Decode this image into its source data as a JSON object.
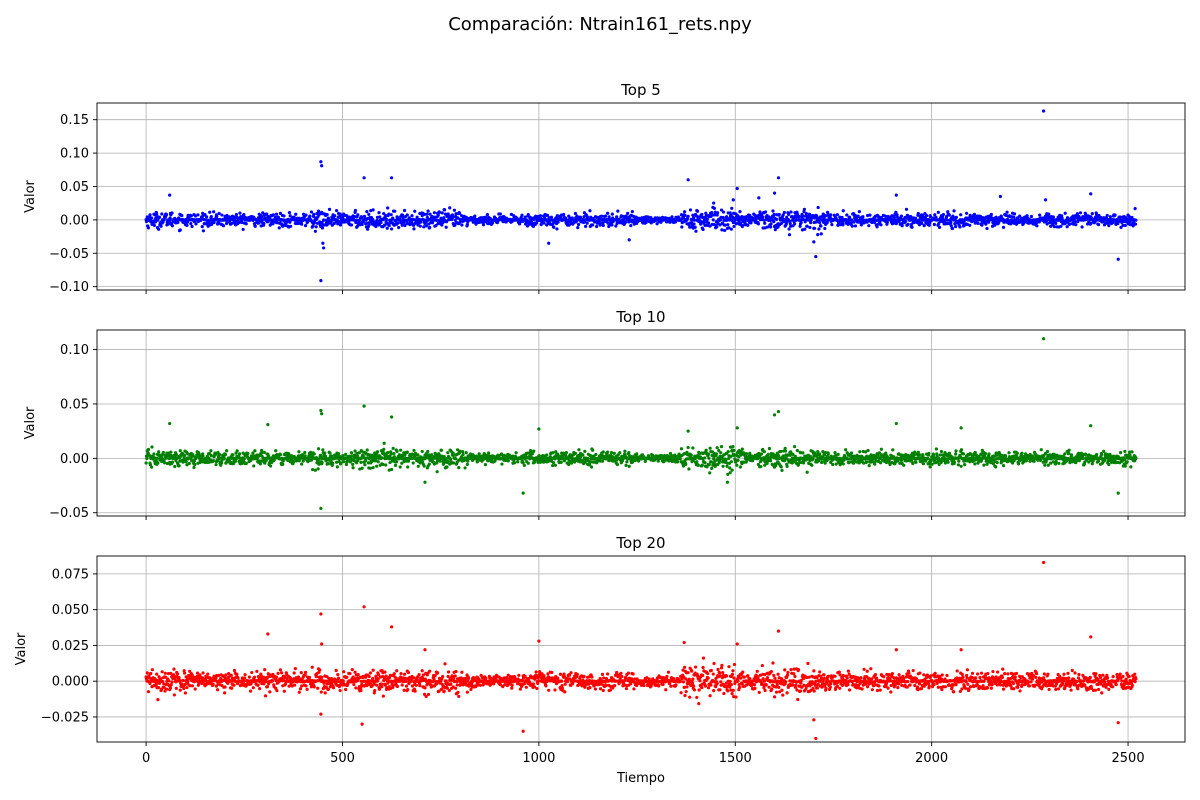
{
  "title": "Comparación: Ntrain161_rets.npy",
  "chart_data": [
    {
      "type": "scatter",
      "title": "Top 5",
      "xlabel": "",
      "ylabel": "Valor",
      "color": "#0000ff",
      "xlim": [
        -125,
        2645
      ],
      "ylim": [
        -0.105,
        0.175
      ],
      "yticks": [
        "0.15",
        "0.10",
        "0.05",
        "0.00",
        "−0.05",
        "−0.10"
      ],
      "ytick_values": [
        0.15,
        0.1,
        0.05,
        0.0,
        -0.05,
        -0.1
      ],
      "grid": true,
      "noise_sd": 0.0085,
      "outliers": [
        [
          445,
          0.087
        ],
        [
          447,
          0.081
        ],
        [
          445,
          -0.091
        ],
        [
          450,
          -0.035
        ],
        [
          452,
          -0.042
        ],
        [
          555,
          0.063
        ],
        [
          625,
          0.063
        ],
        [
          1380,
          0.06
        ],
        [
          1505,
          0.047
        ],
        [
          1495,
          0.03
        ],
        [
          1600,
          0.04
        ],
        [
          1610,
          0.063
        ],
        [
          1705,
          -0.055
        ],
        [
          1700,
          -0.033
        ],
        [
          1910,
          0.037
        ],
        [
          2285,
          0.163
        ],
        [
          2405,
          0.039
        ],
        [
          2475,
          -0.059
        ],
        [
          1025,
          -0.035
        ],
        [
          1230,
          -0.03
        ],
        [
          1560,
          0.033
        ],
        [
          2175,
          0.035
        ],
        [
          60,
          0.037
        ],
        [
          2290,
          0.03
        ]
      ]
    },
    {
      "type": "scatter",
      "title": "Top 10",
      "xlabel": "",
      "ylabel": "Valor",
      "color": "#008000",
      "xlim": [
        -125,
        2645
      ],
      "ylim": [
        -0.053,
        0.118
      ],
      "yticks": [
        "0.10",
        "0.05",
        "0.00",
        "−0.05"
      ],
      "ytick_values": [
        0.1,
        0.05,
        0.0,
        -0.05
      ],
      "grid": true,
      "noise_sd": 0.0055,
      "outliers": [
        [
          445,
          0.044
        ],
        [
          447,
          0.041
        ],
        [
          445,
          -0.046
        ],
        [
          555,
          0.048
        ],
        [
          625,
          0.038
        ],
        [
          2285,
          0.11
        ],
        [
          1600,
          0.04
        ],
        [
          1610,
          0.043
        ],
        [
          1505,
          0.028
        ],
        [
          1000,
          0.027
        ],
        [
          960,
          -0.032
        ],
        [
          2475,
          -0.032
        ],
        [
          2405,
          0.03
        ],
        [
          1910,
          0.032
        ],
        [
          310,
          0.031
        ],
        [
          60,
          0.032
        ],
        [
          1380,
          0.025
        ],
        [
          2075,
          0.028
        ],
        [
          710,
          -0.022
        ],
        [
          1480,
          -0.022
        ]
      ]
    },
    {
      "type": "scatter",
      "title": "Top 20",
      "xlabel": "Tiempo",
      "ylabel": "Valor",
      "color": "#ff0000",
      "xlim": [
        -125,
        2645
      ],
      "ylim": [
        -0.0425,
        0.0875
      ],
      "yticks": [
        "0.075",
        "0.050",
        "0.025",
        "0.000",
        "−0.025"
      ],
      "ytick_values": [
        0.075,
        0.05,
        0.025,
        0.0,
        -0.025
      ],
      "xticks": [
        "0",
        "500",
        "1000",
        "1500",
        "2000",
        "2500"
      ],
      "xtick_values": [
        0,
        500,
        1000,
        1500,
        2000,
        2500
      ],
      "grid": true,
      "noise_sd": 0.0055,
      "outliers": [
        [
          445,
          0.047
        ],
        [
          447,
          0.026
        ],
        [
          445,
          -0.023
        ],
        [
          555,
          0.052
        ],
        [
          550,
          -0.03
        ],
        [
          625,
          0.038
        ],
        [
          310,
          0.033
        ],
        [
          2285,
          0.083
        ],
        [
          1000,
          0.028
        ],
        [
          960,
          -0.035
        ],
        [
          1610,
          0.035
        ],
        [
          1505,
          0.026
        ],
        [
          1370,
          0.027
        ],
        [
          1705,
          -0.04
        ],
        [
          1700,
          -0.027
        ],
        [
          2405,
          0.031
        ],
        [
          2475,
          -0.029
        ],
        [
          2075,
          0.022
        ],
        [
          1910,
          0.022
        ],
        [
          710,
          0.022
        ]
      ]
    }
  ]
}
